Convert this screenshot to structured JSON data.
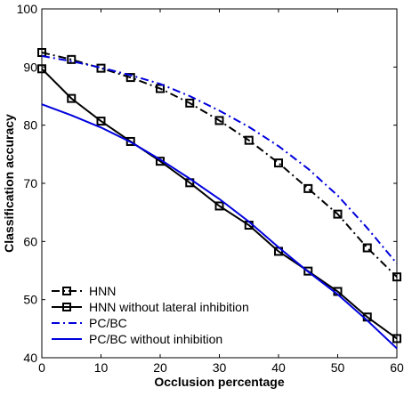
{
  "chart_data": {
    "type": "line",
    "title": "",
    "xlabel": "Occlusion percentage",
    "ylabel": "Classification accuracy",
    "xlim": [
      0,
      60
    ],
    "ylim": [
      40,
      100
    ],
    "xticks": [
      0,
      10,
      20,
      30,
      40,
      50,
      60
    ],
    "yticks": [
      40,
      50,
      60,
      70,
      80,
      90,
      100
    ],
    "grid": false,
    "legend_position": "bottom-left",
    "series": [
      {
        "name": "HNN",
        "style": "dash-dot",
        "marker": "square",
        "color": "#000000",
        "x": [
          0,
          5,
          10,
          15,
          20,
          25,
          30,
          35,
          40,
          45,
          50,
          55,
          60
        ],
        "y": [
          92.5,
          91.3,
          89.8,
          88.2,
          86.3,
          83.8,
          80.8,
          77.4,
          73.5,
          69.1,
          64.7,
          58.9,
          53.9
        ]
      },
      {
        "name": "HNN without lateral inhibition",
        "style": "solid",
        "marker": "square",
        "color": "#000000",
        "x": [
          0,
          5,
          10,
          15,
          20,
          25,
          30,
          35,
          40,
          45,
          50,
          55,
          60
        ],
        "y": [
          89.7,
          84.6,
          80.7,
          77.2,
          73.8,
          70.1,
          66.1,
          62.8,
          58.3,
          54.9,
          51.4,
          47.0,
          43.3
        ]
      },
      {
        "name": "PC/BC",
        "style": "dash-dot",
        "marker": "none",
        "color": "#0000dd",
        "x": [
          0,
          5,
          10,
          15,
          20,
          25,
          30,
          35,
          40,
          45,
          50,
          55,
          60
        ],
        "y": [
          91.9,
          91.0,
          89.9,
          88.6,
          87.1,
          85.0,
          82.5,
          79.7,
          76.4,
          72.5,
          67.9,
          62.3,
          56.2
        ]
      },
      {
        "name": "PC/BC without inhibition",
        "style": "solid",
        "marker": "none",
        "color": "#0000dd",
        "x": [
          0,
          5,
          10,
          15,
          20,
          25,
          30,
          35,
          40,
          45,
          50,
          55,
          60
        ],
        "y": [
          83.6,
          81.7,
          79.6,
          77.1,
          74.1,
          70.8,
          67.3,
          63.4,
          59.0,
          54.8,
          50.9,
          46.4,
          41.6
        ]
      }
    ]
  }
}
